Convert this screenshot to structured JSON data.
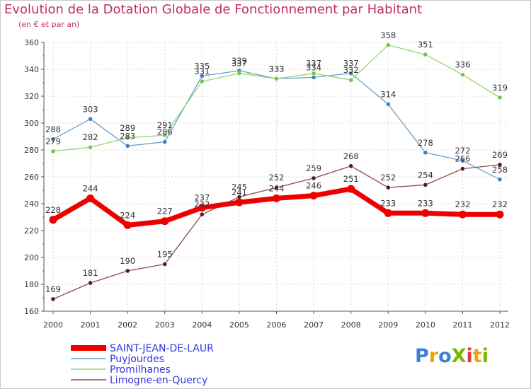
{
  "title": "Evolution de la Dotation Globale de Fonctionnement par Habitant",
  "subtitle": "(en € et par an)",
  "logo": {
    "text": "ProXiti",
    "colors": [
      "#3d7fd6",
      "#f2a200",
      "#3d7fd6",
      "#7ab800",
      "#e8304a",
      "#f2a200",
      "#7ab800"
    ]
  },
  "chart_data": {
    "type": "line",
    "x": [
      "2000",
      "2001",
      "2002",
      "2003",
      "2004",
      "2005",
      "2006",
      "2007",
      "2008",
      "2009",
      "2010",
      "2011",
      "2012"
    ],
    "ylim": [
      160,
      360
    ],
    "yticks": [
      160,
      180,
      200,
      220,
      240,
      260,
      280,
      300,
      320,
      340,
      360
    ],
    "grid": true,
    "legend_position": "bottom-left",
    "series": [
      {
        "name": "SAINT-JEAN-DE-LAUR",
        "color": "#ee0000",
        "marker": "#ee0000",
        "width": 7,
        "values": [
          228,
          244,
          224,
          227,
          237,
          241,
          244,
          246,
          251,
          233,
          233,
          232,
          232
        ],
        "labels": [
          "228",
          "244",
          "224",
          "227",
          "237",
          "241",
          "244",
          "246",
          "251",
          "233",
          "233",
          "232",
          "232"
        ]
      },
      {
        "name": "Puyjourdes",
        "color": "#6a9fd0",
        "marker": "#3a7fc2",
        "width": 1.3,
        "values": [
          288,
          303,
          283,
          286,
          335,
          339,
          333,
          334,
          337,
          314,
          278,
          272,
          258
        ],
        "labels": [
          "288",
          "303",
          "283",
          "286",
          "335",
          "339",
          "333",
          "334",
          "337",
          "314",
          "278",
          "272",
          "258"
        ]
      },
      {
        "name": "Promilhanes",
        "color": "#90d870",
        "marker": "#72c640",
        "width": 1.3,
        "values": [
          279,
          282,
          289,
          291,
          331,
          337,
          333,
          337,
          332,
          358,
          351,
          336,
          319
        ],
        "labels": [
          "279",
          "282",
          "289",
          "291",
          "331",
          "337",
          "333",
          "337",
          "332",
          "358",
          "351",
          "336",
          "319"
        ]
      },
      {
        "name": "Limogne-en-Quercy",
        "color": "#8a4a4a",
        "marker": "#5a1818",
        "width": 1.3,
        "values": [
          169,
          181,
          190,
          195,
          232,
          245,
          252,
          259,
          268,
          252,
          254,
          266,
          269
        ],
        "labels": [
          "169",
          "181",
          "190",
          "195",
          "232",
          "245",
          "252",
          "259",
          "268",
          "252",
          "254",
          "266",
          "269"
        ]
      }
    ]
  }
}
